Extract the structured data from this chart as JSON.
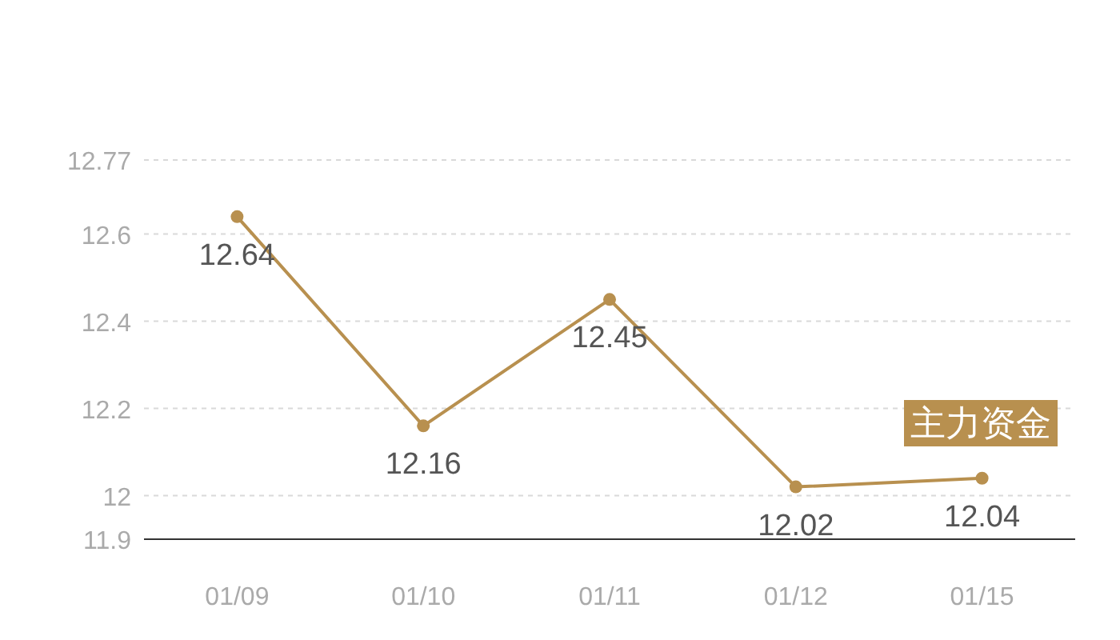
{
  "chart_data": {
    "type": "line",
    "categories": [
      "01/09",
      "01/10",
      "01/11",
      "01/12",
      "01/15"
    ],
    "series": [
      {
        "color": "#b8904f",
        "values": [
          12.64,
          12.16,
          12.45,
          12.02,
          12.04
        ]
      }
    ],
    "ylim": [
      11.9,
      12.77
    ],
    "yticks": [
      11.9,
      12,
      12.2,
      12.4,
      12.6,
      12.77
    ],
    "grid": "y",
    "data_labels": true,
    "marker": "circle",
    "annotations": [
      "主力资金"
    ]
  }
}
